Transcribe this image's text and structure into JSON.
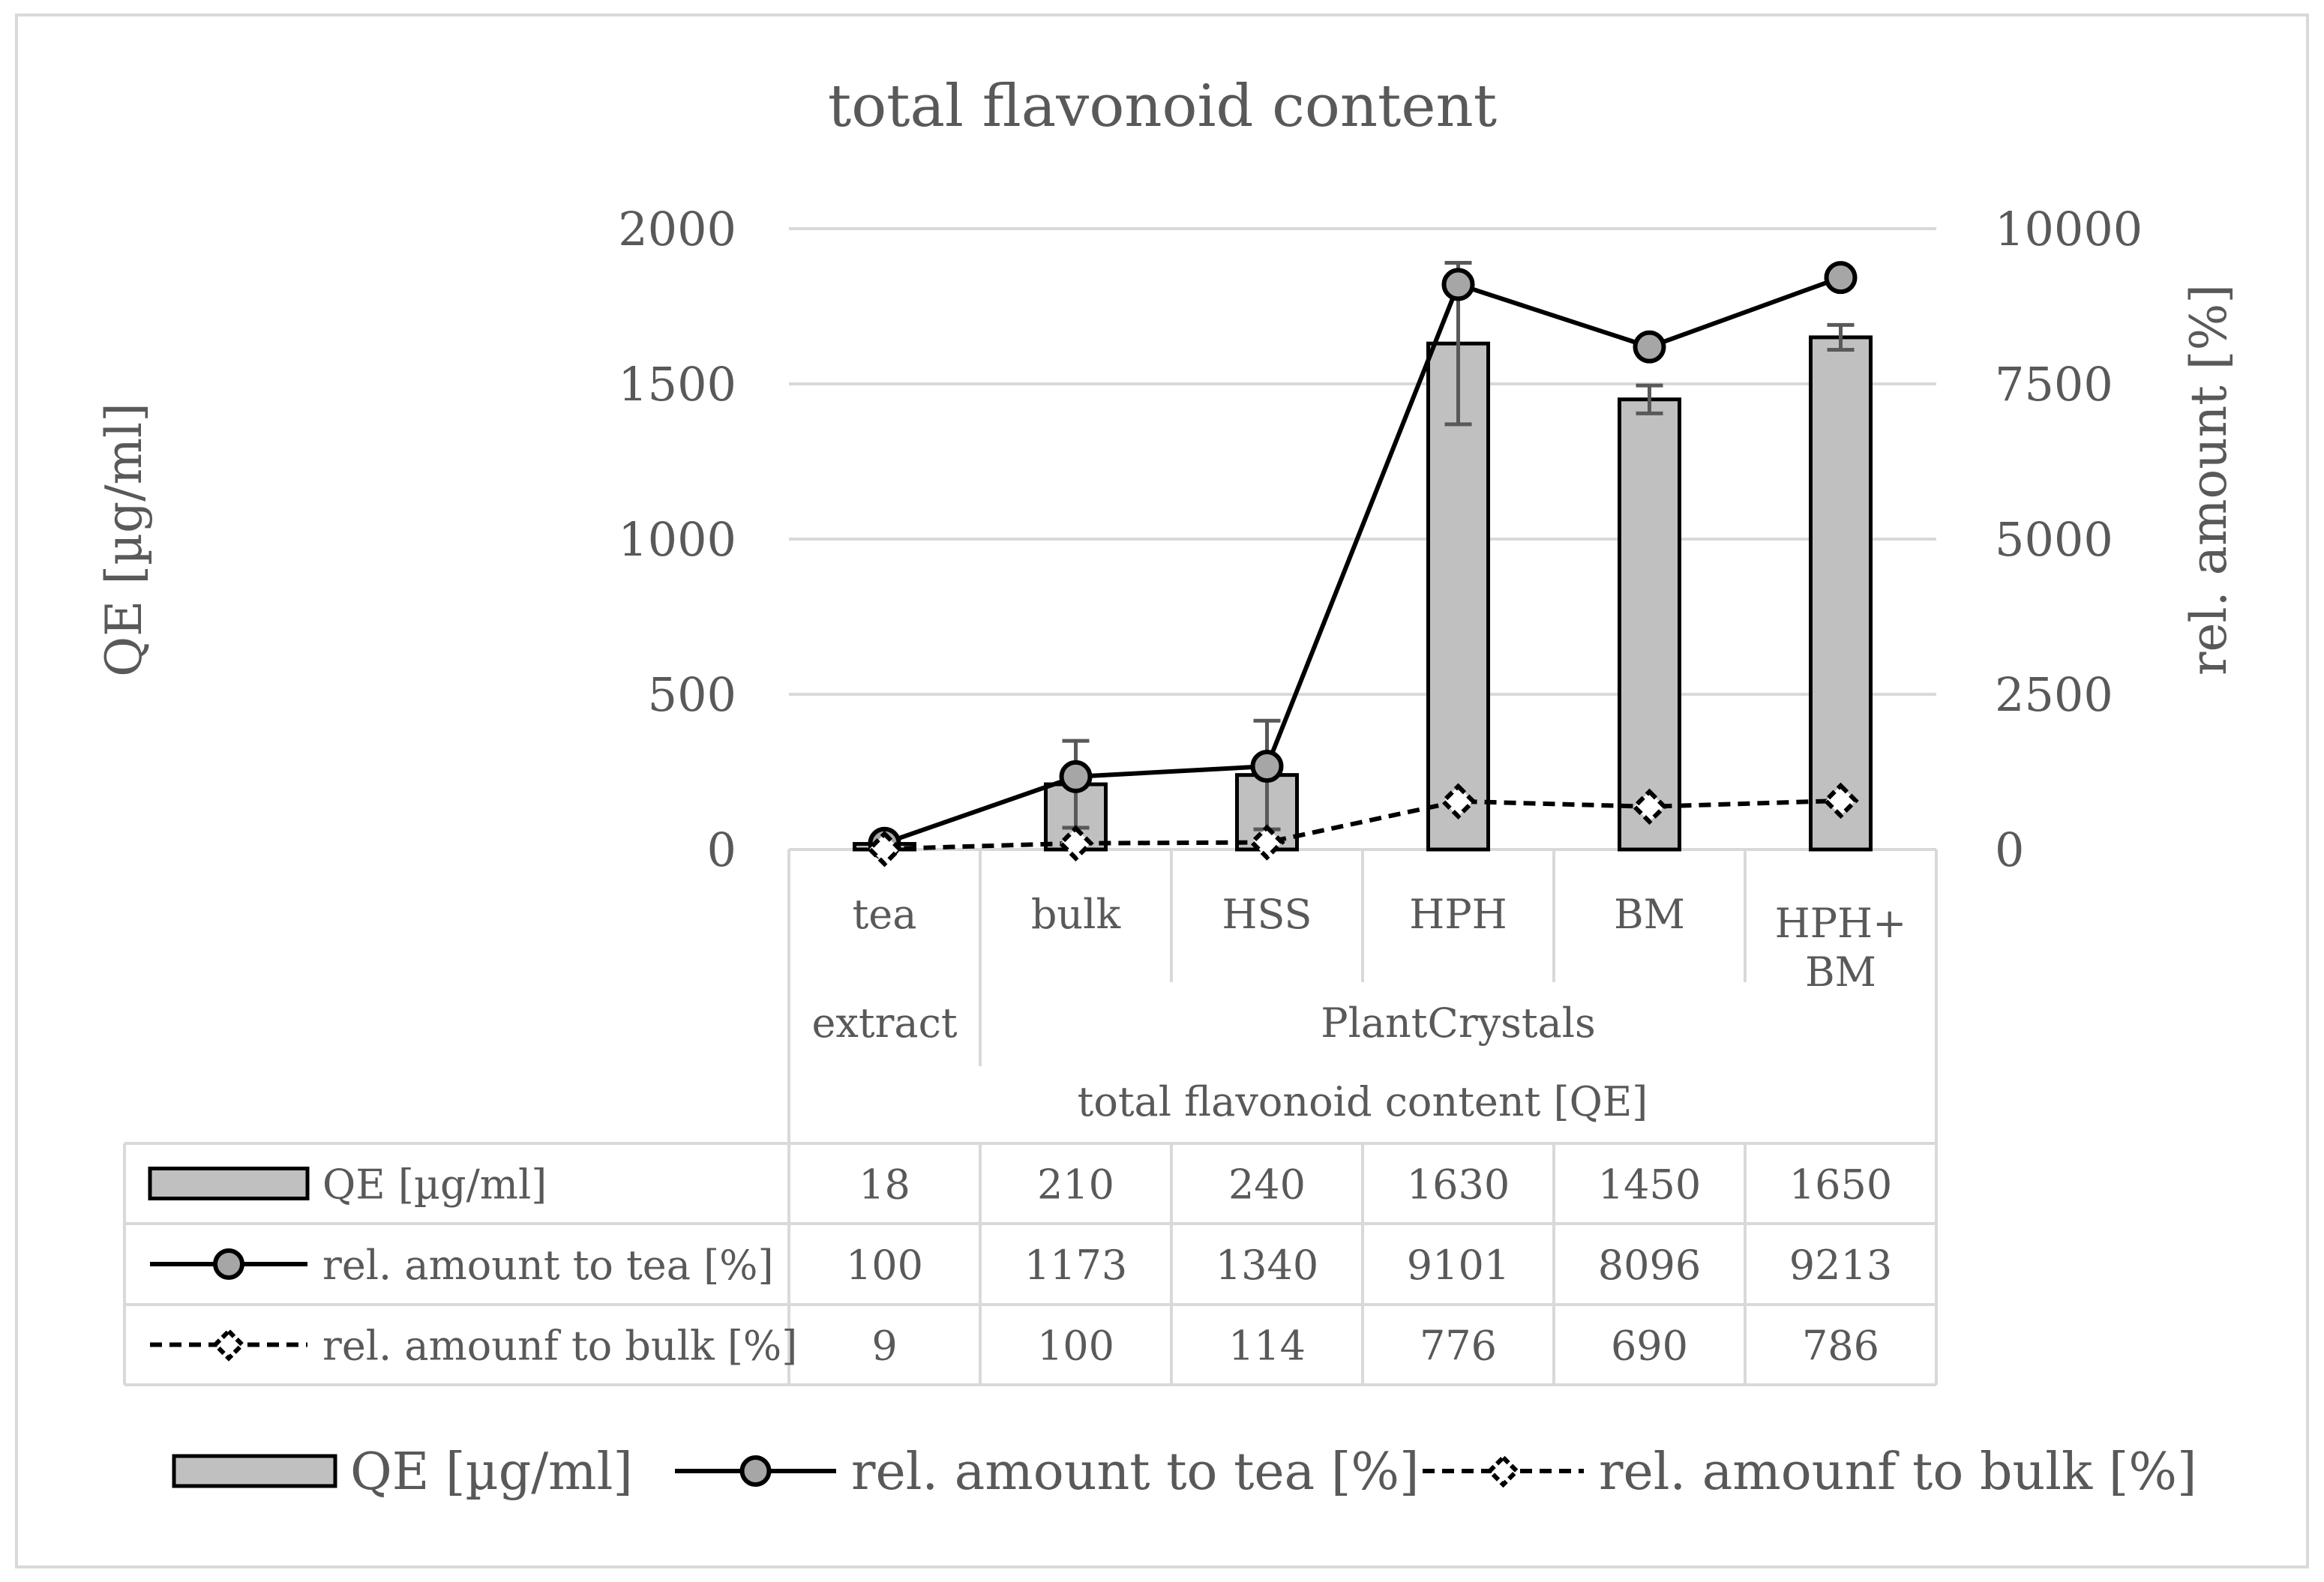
{
  "chart_data": {
    "type": "bar",
    "title": "total flavonoid content",
    "ylabel": "QE [µg/ml]",
    "y2label": "rel. amount [%]",
    "ylim": [
      0,
      2000
    ],
    "y2lim": [
      0,
      10000
    ],
    "yticks": [
      "0",
      "500",
      "1000",
      "1500",
      "2000"
    ],
    "y2ticks": [
      "0",
      "2500",
      "5000",
      "7500",
      "10000"
    ],
    "grid": true,
    "legend": "bottom",
    "categories": [
      {
        "label": "tea",
        "line2": ""
      },
      {
        "label": "bulk",
        "line2": ""
      },
      {
        "label": "HSS",
        "line2": ""
      },
      {
        "label": "HPH",
        "line2": ""
      },
      {
        "label": "BM",
        "line2": ""
      },
      {
        "label": "HPH+",
        "line2": "BM"
      }
    ],
    "groups": [
      {
        "label": "extract",
        "span": [
          0,
          0
        ]
      },
      {
        "label": "PlantCrystals",
        "span": [
          1,
          5
        ]
      }
    ],
    "supergroup": "total flavonoid content [QE]",
    "series": [
      {
        "name": "QE [µg/ml]",
        "type": "bar",
        "axis": "left",
        "color": "#c0c0c0",
        "values": [
          18,
          210,
          240,
          1630,
          1450,
          1650
        ],
        "error": [
          2,
          140,
          175,
          260,
          45,
          40
        ],
        "table": [
          "18",
          "210",
          "240",
          "1630",
          "1450",
          "1650"
        ]
      },
      {
        "name": "rel. amount to tea [%]",
        "type": "line",
        "axis": "right",
        "style": "solid-circle",
        "values": [
          100,
          1173,
          1340,
          9101,
          8096,
          9213
        ],
        "table": [
          "100",
          "1173",
          "1340",
          "9101",
          "8096",
          "9213"
        ]
      },
      {
        "name": "rel. amounf to bulk [%]",
        "type": "line",
        "axis": "right",
        "style": "dashed-diamond",
        "values": [
          9,
          100,
          114,
          776,
          690,
          786
        ],
        "table": [
          "9",
          "100",
          "114",
          "776",
          "690",
          "786"
        ]
      }
    ]
  }
}
